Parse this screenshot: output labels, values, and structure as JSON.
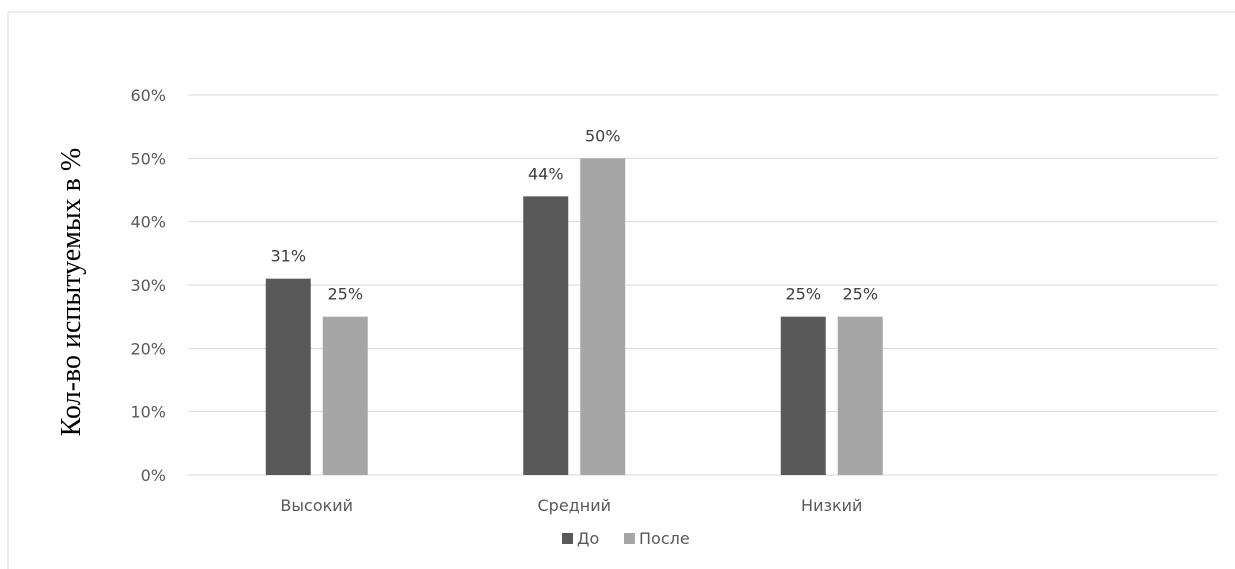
{
  "chart_data": {
    "type": "bar",
    "title": "",
    "xlabel": "",
    "ylabel": "Кол-во испытуемых в %",
    "categories": [
      "Высокий",
      "Средний",
      "Низкий"
    ],
    "series": [
      {
        "name": "До",
        "values": [
          31,
          44,
          25
        ],
        "labels": [
          "31%",
          "44%",
          "25%"
        ],
        "color": "#595959"
      },
      {
        "name": "После",
        "values": [
          25,
          50,
          25
        ],
        "labels": [
          "25%",
          "50%",
          "25%"
        ],
        "color": "#a6a6a6"
      }
    ],
    "ylim": [
      0,
      60
    ],
    "yticks": [
      0,
      10,
      20,
      30,
      40,
      50,
      60
    ],
    "ytick_labels": [
      "0%",
      "10%",
      "20%",
      "30%",
      "40%",
      "50%",
      "60%"
    ],
    "grid": true,
    "legend_position": "bottom"
  }
}
